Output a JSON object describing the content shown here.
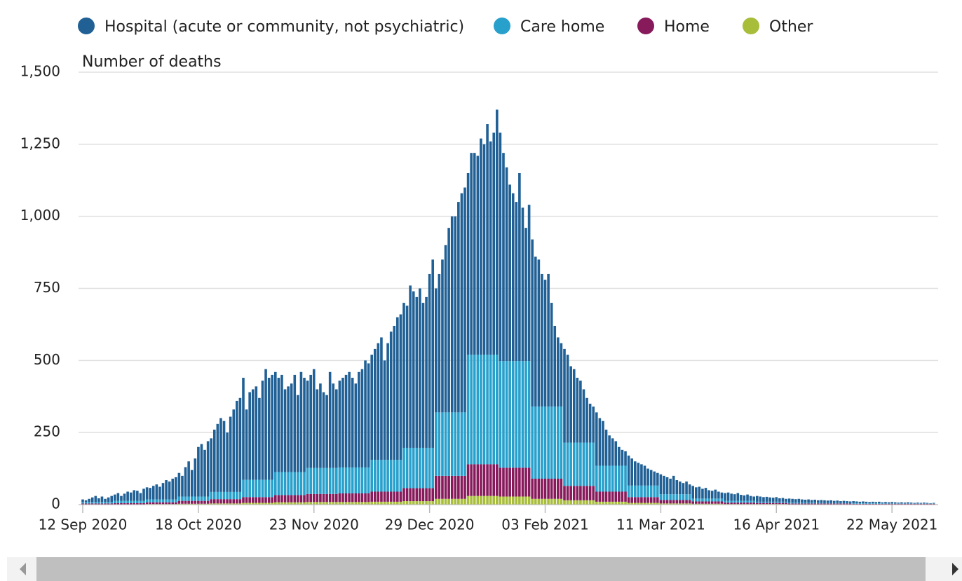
{
  "chart_data": {
    "type": "bar",
    "stacked": true,
    "y_label": "Number of deaths",
    "ylim": [
      0,
      1500
    ],
    "yticks": [
      0,
      250,
      500,
      750,
      {
        "value": 1000,
        "label": "1,000"
      },
      {
        "value": 1250,
        "label": "1,250"
      },
      {
        "value": 1500,
        "label": "1,500"
      }
    ],
    "grid": true,
    "legend": "top",
    "categories": [
      "12 Sep 2020",
      null,
      null,
      null,
      null,
      null,
      null,
      null,
      null,
      null,
      null,
      null,
      null,
      null,
      null,
      null,
      null,
      null,
      null,
      null,
      null,
      null,
      null,
      null,
      null,
      null,
      null,
      null,
      null,
      null,
      null,
      null,
      null,
      null,
      null,
      null,
      "18 Oct 2020",
      null,
      null,
      null,
      null,
      null,
      null,
      null,
      null,
      null,
      null,
      null,
      null,
      null,
      null,
      null,
      null,
      null,
      null,
      null,
      null,
      null,
      null,
      null,
      null,
      null,
      null,
      null,
      null,
      null,
      null,
      null,
      null,
      null,
      null,
      null,
      "23 Nov 2020",
      null,
      null,
      null,
      null,
      null,
      null,
      null,
      null,
      null,
      null,
      null,
      null,
      null,
      null,
      null,
      null,
      null,
      null,
      null,
      null,
      null,
      null,
      null,
      null,
      null,
      null,
      null,
      null,
      null,
      null,
      null,
      null,
      null,
      null,
      null,
      "29 Dec 2020",
      null,
      null,
      null,
      null,
      null,
      null,
      null,
      null,
      null,
      null,
      null,
      null,
      null,
      null,
      null,
      null,
      null,
      null,
      null,
      null,
      null,
      null,
      null,
      null,
      null,
      null,
      null,
      null,
      null,
      null,
      null,
      null,
      null,
      null,
      null,
      "03 Feb 2021",
      null,
      null,
      null,
      null,
      null,
      null,
      null,
      null,
      null,
      null,
      null,
      null,
      null,
      null,
      null,
      null,
      null,
      null,
      null,
      null,
      null,
      null,
      null,
      null,
      null,
      null,
      null,
      null,
      null,
      null,
      null,
      null,
      null,
      null,
      null,
      "11 Mar 2021",
      null,
      null,
      null,
      null,
      null,
      null,
      null,
      null,
      null,
      null,
      null,
      null,
      null,
      null,
      null,
      null,
      null,
      null,
      null,
      null,
      null,
      null,
      null,
      null,
      null,
      null,
      null,
      null,
      null,
      null,
      null,
      null,
      null,
      null,
      null,
      "16 Apr 2021",
      null,
      null,
      null,
      null,
      null,
      null,
      null,
      null,
      null,
      null,
      null,
      null,
      null,
      null,
      null,
      null,
      null,
      null,
      null,
      null,
      null,
      null,
      null,
      null,
      null,
      null,
      null,
      null,
      null,
      null,
      null,
      null,
      null,
      null,
      null,
      "22 May 2021",
      null,
      null,
      null,
      null,
      null,
      null,
      null,
      null,
      null,
      null,
      null,
      null,
      null
    ],
    "series": [
      {
        "name": "Hospital (acute or community, not psychiatric)",
        "color": "#206095",
        "values": [
          9,
          6,
          11,
          16,
          21,
          13,
          19,
          11,
          16,
          21,
          22,
          27,
          17,
          25,
          32,
          29,
          37,
          35,
          27,
          42,
          42,
          40,
          47,
          52,
          44,
          57,
          67,
          62,
          72,
          77,
          82,
          72,
          102,
          122,
          92,
          132,
          172,
          182,
          162,
          192,
          186,
          216,
          236,
          256,
          246,
          206,
          261,
          286,
          316,
          326,
          354,
          244,
          304,
          314,
          324,
          284,
          344,
          384,
          354,
          364,
          347,
          327,
          337,
          287,
          297,
          307,
          337,
          267,
          347,
          327,
          303,
          323,
          343,
          273,
          293,
          263,
          253,
          333,
          293,
          273,
          301,
          311,
          321,
          331,
          311,
          291,
          331,
          341,
          371,
          361,
          365,
          385,
          405,
          425,
          345,
          405,
          445,
          465,
          495,
          505,
          503,
          493,
          563,
          543,
          523,
          553,
          503,
          523,
          603,
          653,
          430,
          480,
          530,
          580,
          640,
          680,
          680,
          730,
          760,
          780,
          630,
          700,
          700,
          690,
          750,
          730,
          800,
          740,
          770,
          850,
          792,
          722,
          672,
          612,
          582,
          552,
          652,
          532,
          462,
          542,
          580,
          520,
          510,
          460,
          440,
          460,
          360,
          280,
          240,
          220,
          325,
          305,
          265,
          255,
          225,
          215,
          185,
          155,
          135,
          125,
          185,
          165,
          155,
          125,
          105,
          95,
          85,
          65,
          55,
          50,
          104,
          94,
          84,
          79,
          74,
          69,
          59,
          54,
          49,
          44,
          69,
          64,
          59,
          54,
          64,
          49,
          44,
          39,
          44,
          34,
          44,
          39,
          41,
          34,
          37,
          29,
          27,
          31,
          24,
          21,
          27,
          29,
          25,
          23,
          27,
          21,
          19,
          22,
          17,
          15,
          20,
          18,
          16,
          17,
          15,
          14,
          16,
          12,
          13,
          10,
          14,
          13,
          12,
          13,
          11,
          10,
          11,
          9,
          10,
          8,
          10,
          9,
          8,
          9,
          7,
          8,
          6,
          7,
          6,
          5,
          7,
          6,
          5,
          6,
          5,
          4,
          5,
          4,
          5,
          3,
          5,
          4,
          5,
          4,
          3,
          4,
          3,
          4,
          3,
          2,
          3,
          2,
          3,
          2,
          1,
          2
        ]
      },
      {
        "name": "Care home",
        "color": "#27a0cc",
        "values": [
          5,
          5,
          5,
          5,
          5,
          5,
          5,
          5,
          5,
          5,
          8,
          8,
          8,
          8,
          8,
          8,
          8,
          8,
          8,
          8,
          10,
          10,
          10,
          10,
          10,
          10,
          10,
          10,
          10,
          10,
          15,
          15,
          15,
          15,
          15,
          15,
          15,
          15,
          15,
          15,
          25,
          25,
          25,
          25,
          25,
          25,
          25,
          25,
          25,
          25,
          60,
          60,
          60,
          60,
          60,
          60,
          60,
          60,
          60,
          60,
          80,
          80,
          80,
          80,
          80,
          80,
          80,
          80,
          80,
          80,
          90,
          90,
          90,
          90,
          90,
          90,
          90,
          90,
          90,
          90,
          90,
          90,
          90,
          90,
          90,
          90,
          90,
          90,
          90,
          90,
          110,
          110,
          110,
          110,
          110,
          110,
          110,
          110,
          110,
          110,
          140,
          140,
          140,
          140,
          140,
          140,
          140,
          140,
          140,
          140,
          220,
          220,
          220,
          220,
          220,
          220,
          220,
          220,
          220,
          220,
          380,
          380,
          380,
          380,
          380,
          380,
          380,
          380,
          380,
          380,
          370,
          370,
          370,
          370,
          370,
          370,
          370,
          370,
          370,
          370,
          250,
          250,
          250,
          250,
          250,
          250,
          250,
          250,
          250,
          250,
          150,
          150,
          150,
          150,
          150,
          150,
          150,
          150,
          150,
          150,
          90,
          90,
          90,
          90,
          90,
          90,
          90,
          90,
          90,
          90,
          40,
          40,
          40,
          40,
          40,
          40,
          40,
          40,
          40,
          40,
          20,
          20,
          20,
          20,
          20,
          20,
          20,
          20,
          20,
          20,
          10,
          10,
          10,
          10,
          10,
          10,
          10,
          10,
          10,
          10,
          6,
          6,
          6,
          6,
          6,
          6,
          6,
          6,
          6,
          6,
          4,
          4,
          4,
          4,
          4,
          4,
          4,
          4,
          4,
          4,
          3,
          3,
          3,
          3,
          3,
          3,
          3,
          3,
          3,
          3,
          2,
          2,
          2,
          2,
          2,
          2,
          2,
          2,
          2,
          2,
          2,
          2,
          2,
          2,
          2,
          2,
          2,
          2,
          2,
          2,
          1,
          1,
          1,
          1,
          1,
          1,
          1,
          1,
          1,
          1,
          1,
          1,
          1,
          1,
          1,
          1
        ]
      },
      {
        "name": "Home",
        "color": "#871a5b",
        "values": [
          3,
          3,
          3,
          3,
          3,
          3,
          3,
          3,
          3,
          3,
          4,
          4,
          4,
          4,
          4,
          4,
          4,
          4,
          4,
          4,
          6,
          6,
          6,
          6,
          6,
          6,
          6,
          6,
          6,
          6,
          10,
          10,
          10,
          10,
          10,
          10,
          10,
          10,
          10,
          10,
          15,
          15,
          15,
          15,
          15,
          15,
          15,
          15,
          15,
          15,
          20,
          20,
          20,
          20,
          20,
          20,
          20,
          20,
          20,
          20,
          25,
          25,
          25,
          25,
          25,
          25,
          25,
          25,
          25,
          25,
          28,
          28,
          28,
          28,
          28,
          28,
          28,
          28,
          28,
          28,
          30,
          30,
          30,
          30,
          30,
          30,
          30,
          30,
          30,
          30,
          35,
          35,
          35,
          35,
          35,
          35,
          35,
          35,
          35,
          35,
          45,
          45,
          45,
          45,
          45,
          45,
          45,
          45,
          45,
          45,
          80,
          80,
          80,
          80,
          80,
          80,
          80,
          80,
          80,
          80,
          110,
          110,
          110,
          110,
          110,
          110,
          110,
          110,
          110,
          110,
          100,
          100,
          100,
          100,
          100,
          100,
          100,
          100,
          100,
          100,
          70,
          70,
          70,
          70,
          70,
          70,
          70,
          70,
          70,
          70,
          50,
          50,
          50,
          50,
          50,
          50,
          50,
          50,
          50,
          50,
          35,
          35,
          35,
          35,
          35,
          35,
          35,
          35,
          35,
          35,
          20,
          20,
          20,
          20,
          20,
          20,
          20,
          20,
          20,
          20,
          12,
          12,
          12,
          12,
          12,
          12,
          12,
          12,
          12,
          12,
          8,
          8,
          8,
          8,
          8,
          8,
          8,
          8,
          8,
          8,
          5,
          5,
          5,
          5,
          5,
          5,
          5,
          5,
          5,
          5,
          4,
          4,
          4,
          4,
          4,
          4,
          4,
          4,
          4,
          4,
          3,
          3,
          3,
          3,
          3,
          3,
          3,
          3,
          3,
          3,
          3,
          3,
          3,
          3,
          3,
          3,
          3,
          3,
          3,
          3,
          2,
          2,
          2,
          2,
          2,
          2,
          2,
          2,
          2,
          2,
          2,
          2,
          2,
          2,
          2,
          2,
          2,
          2,
          2,
          2,
          2,
          2,
          2,
          2,
          2,
          2
        ]
      },
      {
        "name": "Other",
        "color": "#a8bd3a",
        "values": [
          1,
          1,
          1,
          1,
          1,
          1,
          1,
          1,
          1,
          1,
          1,
          1,
          1,
          1,
          1,
          1,
          1,
          1,
          1,
          1,
          2,
          2,
          2,
          2,
          2,
          2,
          2,
          2,
          2,
          2,
          3,
          3,
          3,
          3,
          3,
          3,
          3,
          3,
          3,
          3,
          4,
          4,
          4,
          4,
          4,
          4,
          4,
          4,
          4,
          4,
          6,
          6,
          6,
          6,
          6,
          6,
          6,
          6,
          6,
          6,
          8,
          8,
          8,
          8,
          8,
          8,
          8,
          8,
          8,
          8,
          9,
          9,
          9,
          9,
          9,
          9,
          9,
          9,
          9,
          9,
          9,
          9,
          9,
          9,
          9,
          9,
          9,
          9,
          9,
          9,
          10,
          10,
          10,
          10,
          10,
          10,
          10,
          10,
          10,
          10,
          12,
          12,
          12,
          12,
          12,
          12,
          12,
          12,
          12,
          12,
          20,
          20,
          20,
          20,
          20,
          20,
          20,
          20,
          20,
          20,
          30,
          30,
          30,
          30,
          30,
          30,
          30,
          30,
          30,
          30,
          28,
          28,
          28,
          28,
          28,
          28,
          28,
          28,
          28,
          28,
          20,
          20,
          20,
          20,
          20,
          20,
          20,
          20,
          20,
          20,
          15,
          15,
          15,
          15,
          15,
          15,
          15,
          15,
          15,
          15,
          10,
          10,
          10,
          10,
          10,
          10,
          10,
          10,
          10,
          10,
          6,
          6,
          6,
          6,
          6,
          6,
          6,
          6,
          6,
          6,
          4,
          4,
          4,
          4,
          4,
          4,
          4,
          4,
          4,
          4,
          3,
          3,
          3,
          3,
          3,
          3,
          3,
          3,
          3,
          3,
          2,
          2,
          2,
          2,
          2,
          2,
          2,
          2,
          2,
          2,
          2,
          2,
          2,
          2,
          2,
          2,
          2,
          2,
          2,
          2,
          1,
          1,
          1,
          1,
          1,
          1,
          1,
          1,
          1,
          1,
          1,
          1,
          1,
          1,
          1,
          1,
          1,
          1,
          1,
          1,
          1,
          1,
          1,
          1,
          1,
          1,
          1,
          1,
          1,
          1,
          1,
          1,
          1,
          1,
          1,
          1,
          1,
          1,
          1,
          1,
          1,
          1,
          1,
          1,
          1,
          1
        ]
      }
    ]
  }
}
